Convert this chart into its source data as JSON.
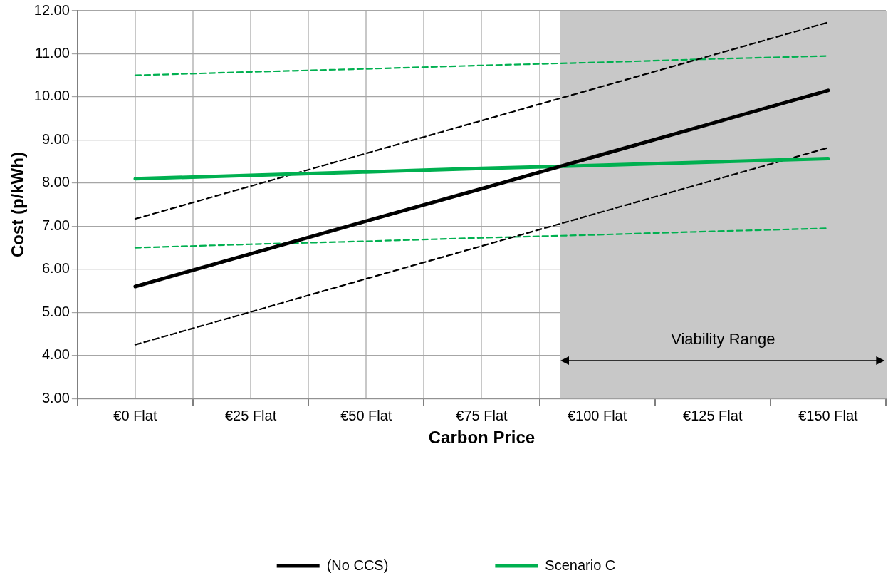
{
  "chart_data": {
    "type": "line",
    "xlabel": "Carbon Price",
    "ylabel": "Cost (p/kWh)",
    "x": [
      0,
      25,
      50,
      75,
      100,
      125,
      150
    ],
    "xlim": [
      -12.5,
      162.5
    ],
    "xticks": [
      {
        "value": -12.5,
        "label": null
      },
      {
        "value": 0,
        "label": "€0 Flat"
      },
      {
        "value": 12.5,
        "label": null
      },
      {
        "value": 25,
        "label": "€25 Flat"
      },
      {
        "value": 37.5,
        "label": null
      },
      {
        "value": 50,
        "label": "€50 Flat"
      },
      {
        "value": 62.5,
        "label": null
      },
      {
        "value": 75,
        "label": "€75 Flat"
      },
      {
        "value": 87.5,
        "label": null
      },
      {
        "value": 100,
        "label": "€100 Flat"
      },
      {
        "value": 112.5,
        "label": null
      },
      {
        "value": 125,
        "label": "€125 Flat"
      },
      {
        "value": 137.5,
        "label": null
      },
      {
        "value": 150,
        "label": "€150 Flat"
      },
      {
        "value": 162.5,
        "label": null
      }
    ],
    "ylim": [
      3,
      12
    ],
    "yticks": [
      {
        "value": 3,
        "label": "3.00"
      },
      {
        "value": 4,
        "label": "4.00"
      },
      {
        "value": 5,
        "label": "5.00"
      },
      {
        "value": 6,
        "label": "6.00"
      },
      {
        "value": 7,
        "label": "7.00"
      },
      {
        "value": 8,
        "label": "8.00"
      },
      {
        "value": 9,
        "label": "9.00"
      },
      {
        "value": 10,
        "label": "10.00"
      },
      {
        "value": 11,
        "label": "11.00"
      },
      {
        "value": 12,
        "label": "12.00"
      }
    ],
    "grid": true,
    "legend": "bottom",
    "marker": "none",
    "bands": [
      {
        "axis": "x",
        "from": 92,
        "to": 162.5,
        "label": "Viability Range",
        "color": "#c8c8c8"
      }
    ],
    "series": [
      {
        "name": "(No CCS)",
        "color": "#000000",
        "line_style": "solid",
        "values": [
          5.6,
          6.36,
          7.12,
          7.87,
          8.63,
          9.39,
          10.15
        ]
      },
      {
        "name": "Scenario C",
        "color": "#00b050",
        "line_style": "solid",
        "values": [
          8.1,
          8.18,
          8.26,
          8.34,
          8.41,
          8.49,
          8.57
        ]
      },
      {
        "color": "#000000",
        "line_style": "dashed",
        "values": [
          7.17,
          7.93,
          8.69,
          9.45,
          10.21,
          10.97,
          11.73
        ]
      },
      {
        "color": "#000000",
        "line_style": "dashed",
        "values": [
          4.25,
          5.01,
          5.78,
          6.54,
          7.3,
          8.06,
          8.82
        ]
      },
      {
        "color": "#00b050",
        "line_style": "dashed",
        "values": [
          10.5,
          10.58,
          10.65,
          10.73,
          10.8,
          10.88,
          10.95
        ]
      },
      {
        "color": "#00b050",
        "line_style": "dashed",
        "values": [
          6.5,
          6.58,
          6.65,
          6.73,
          6.8,
          6.88,
          6.95
        ]
      }
    ]
  }
}
